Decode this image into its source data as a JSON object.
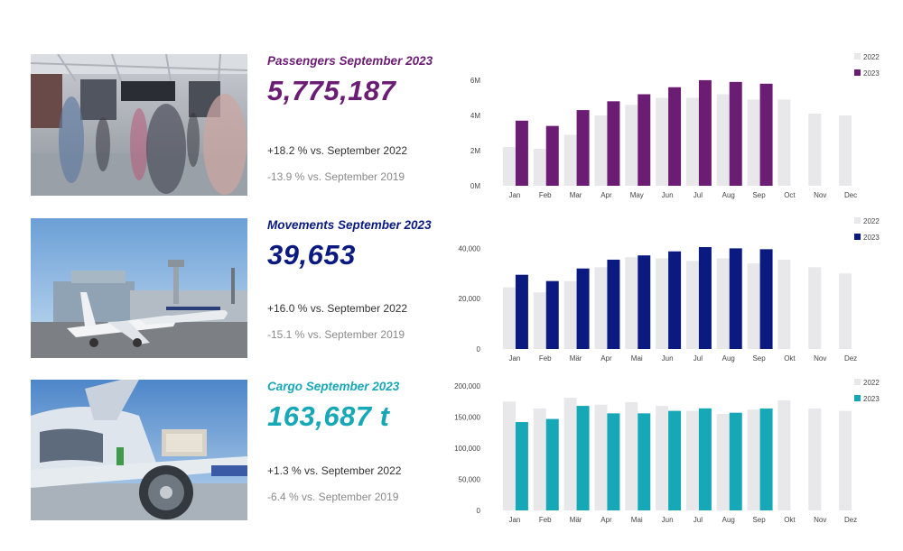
{
  "panels": [
    {
      "id": "passengers",
      "title": "Passengers September 2023",
      "value": "5,775,187",
      "delta_2022": "+18.2 % vs. September 2022",
      "delta_2019": "-13.9 % vs. September 2019",
      "accent": "#6b1d73",
      "photo": "airport-terminal-crowd",
      "chart_data": {
        "type": "bar",
        "categories": [
          "Jan",
          "Feb",
          "Mar",
          "Apr",
          "May",
          "Jun",
          "Jul",
          "Aug",
          "Sep",
          "Oct",
          "Nov",
          "Dec"
        ],
        "series": [
          {
            "name": "2022",
            "color": "#e8e8ea",
            "values": [
              2.2,
              2.1,
              2.9,
              4.0,
              4.6,
              5.0,
              5.0,
              5.2,
              4.9,
              4.9,
              4.1,
              4.0
            ]
          },
          {
            "name": "2023",
            "color": "#6b1d73",
            "values": [
              3.7,
              3.4,
              4.3,
              4.8,
              5.2,
              5.6,
              6.0,
              5.9,
              5.8,
              null,
              null,
              null
            ]
          }
        ],
        "y_ticks": [
          0,
          2,
          4,
          6
        ],
        "y_tick_labels": [
          "0M",
          "2M",
          "4M",
          "6M"
        ],
        "ylim": [
          0,
          6.2
        ],
        "legend": "top-right"
      }
    },
    {
      "id": "movements",
      "title": "Movements September 2023",
      "value": "39,653",
      "delta_2022": "+16.0 % vs. September 2022",
      "delta_2019": "-15.1 % vs. September 2019",
      "accent": "#0a1a80",
      "photo": "airport-apron-aircraft",
      "chart_data": {
        "type": "bar",
        "categories": [
          "Jan",
          "Feb",
          "Mär",
          "Apr",
          "Mai",
          "Jun",
          "Jul",
          "Aug",
          "Sep",
          "Okt",
          "Nov",
          "Dez"
        ],
        "series": [
          {
            "name": "2022",
            "color": "#e8e8ea",
            "values": [
              24500,
              22500,
              27000,
              32500,
              36500,
              36000,
              35000,
              36000,
              34000,
              35500,
              32500,
              30000
            ]
          },
          {
            "name": "2023",
            "color": "#0a1a80",
            "values": [
              29500,
              27000,
              32000,
              35500,
              37200,
              38800,
              40500,
              40000,
              39653,
              null,
              null,
              null
            ]
          }
        ],
        "y_ticks": [
          0,
          20000,
          40000
        ],
        "y_tick_labels": [
          "0",
          "20,000",
          "40,000"
        ],
        "ylim": [
          0,
          40500
        ],
        "legend": "top-right"
      }
    },
    {
      "id": "cargo",
      "title": "Cargo September 2023",
      "value": "163,687 t",
      "delta_2022": "+1.3 % vs. September 2022",
      "delta_2019": "-6.4 % vs. September 2019",
      "accent": "#17a8b8",
      "photo": "aircraft-cargo-loading",
      "chart_data": {
        "type": "bar",
        "categories": [
          "Jan",
          "Feb",
          "Mär",
          "Apr",
          "Mai",
          "Jun",
          "Jul",
          "Aug",
          "Sep",
          "Okt",
          "Nov",
          "Dez"
        ],
        "series": [
          {
            "name": "2022",
            "color": "#e8e8ea",
            "values": [
              175000,
              164000,
              181000,
              170000,
              174000,
              168000,
              160000,
              155000,
              162000,
              177000,
              164000,
              160000
            ]
          },
          {
            "name": "2023",
            "color": "#17a8b8",
            "values": [
              142000,
              147000,
              168000,
              156000,
              156000,
              160000,
              164000,
              157000,
              163687,
              null,
              null,
              null
            ]
          }
        ],
        "y_ticks": [
          0,
          50000,
          100000,
          150000,
          200000
        ],
        "y_tick_labels": [
          "0",
          "50,000",
          "100,000",
          "150,000",
          "200,000"
        ],
        "ylim": [
          0,
          200000
        ],
        "legend": "top-right"
      }
    }
  ]
}
